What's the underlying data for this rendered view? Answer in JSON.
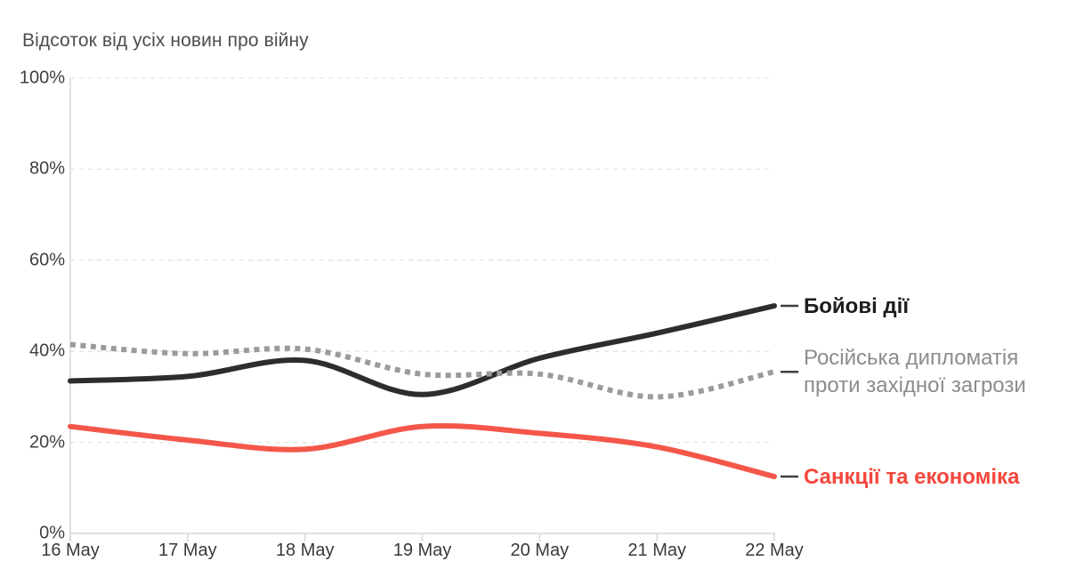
{
  "title": "Відсоток від усіх новин про війну",
  "chart_data": {
    "type": "line",
    "title": "Відсоток від усіх новин про війну",
    "x_categories": [
      "16 May",
      "17 May",
      "18 May",
      "19 May",
      "20 May",
      "21 May",
      "22 May"
    ],
    "y_ticks": [
      "100%",
      "80%",
      "60%",
      "40%",
      "20%",
      "0%"
    ],
    "y_tick_values": [
      100,
      80,
      60,
      40,
      20,
      0
    ],
    "ylim": [
      0,
      100
    ],
    "grid": "horizontal-dashed",
    "legend_position": "right-of-plot",
    "series": [
      {
        "name": "Бойові дії",
        "label_lines": [
          "Бойові дії"
        ],
        "color": "#2d2d2d",
        "line_style": "solid",
        "values": [
          33.5,
          34.5,
          38,
          30.5,
          38.5,
          44,
          50
        ]
      },
      {
        "name": "Російська дипломатія проти західної загрози",
        "label_lines": [
          "Російська дипломатія",
          "проти західної загрози"
        ],
        "color": "#9b9b9b",
        "line_style": "dotted",
        "values": [
          41.5,
          39.5,
          40.5,
          35,
          35,
          30,
          35.5
        ]
      },
      {
        "name": "Санкції та економіка",
        "label_lines": [
          "Санкції та економіка"
        ],
        "color": "#f4574a",
        "line_style": "solid",
        "values": [
          23.5,
          20.5,
          18.5,
          23.5,
          22,
          19,
          12.5
        ]
      }
    ]
  },
  "colors": {
    "background": "#ffffff",
    "grid": "#e4e4e4",
    "axis": "#d6d6d6",
    "title_text": "#4d4d4d",
    "tick_text": "#3f3f3f",
    "legend_connector": "#3f3f3f"
  }
}
